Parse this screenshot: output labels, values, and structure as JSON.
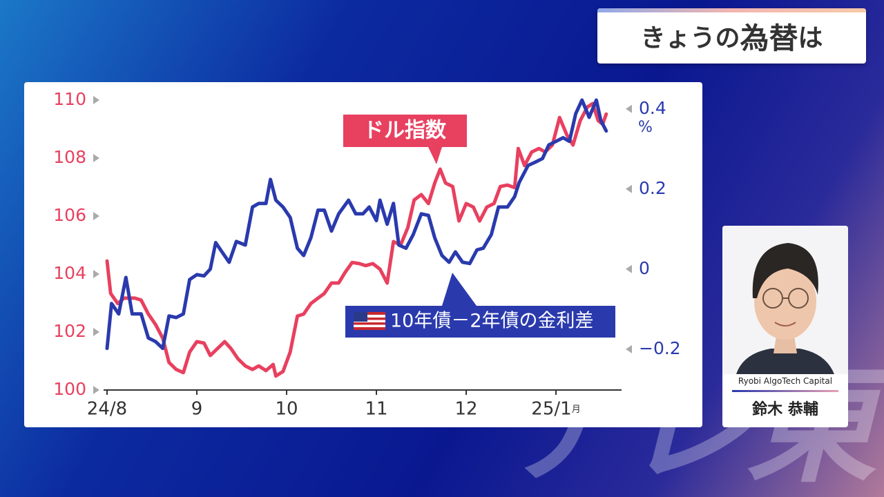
{
  "header": {
    "title_prefix": "きょうの",
    "title_emphasis": "為替",
    "title_suffix": "は"
  },
  "presenter": {
    "company": "Ryobi AlgoTech Capital",
    "name": "鈴木 恭輔"
  },
  "watermark": "テレ東",
  "chart_data": {
    "type": "line",
    "xlim": [
      0,
      5.6
    ],
    "xticks": [
      {
        "value": 0,
        "label": "24/8"
      },
      {
        "value": 1,
        "label": "9"
      },
      {
        "value": 2,
        "label": "10"
      },
      {
        "value": 3,
        "label": "11"
      },
      {
        "value": 4,
        "label": "12"
      },
      {
        "value": 5,
        "label": "25/1"
      }
    ],
    "x_unit": "月",
    "ylim": [
      100,
      110
    ],
    "yticks": [
      100,
      102,
      104,
      106,
      108,
      110
    ],
    "y2lim": [
      -0.302,
      0.422
    ],
    "y2ticks": [
      {
        "value": -0.2,
        "label": "−0.2"
      },
      0,
      0.2,
      0.4
    ],
    "y2label": "%",
    "series": [
      {
        "name": "ドル指数",
        "color": "#e8405f",
        "x": [
          0,
          0.04,
          0.12,
          0.19,
          0.31,
          0.38,
          0.46,
          0.54,
          0.62,
          0.69,
          0.77,
          0.85,
          0.92,
          1.0,
          1.08,
          1.15,
          1.23,
          1.31,
          1.38,
          1.46,
          1.54,
          1.62,
          1.69,
          1.77,
          1.85,
          1.88,
          1.96,
          2.04,
          2.12,
          2.19,
          2.27,
          2.35,
          2.42,
          2.5,
          2.58,
          2.65,
          2.73,
          2.81,
          2.88,
          2.96,
          3.04,
          3.12,
          3.19,
          3.27,
          3.35,
          3.42,
          3.5,
          3.58,
          3.65,
          3.71,
          3.77,
          3.85,
          3.92,
          4.0,
          4.08,
          4.15,
          4.23,
          4.31,
          4.38,
          4.46,
          4.54,
          4.58,
          4.65,
          4.73,
          4.81,
          4.88,
          4.96,
          5.04,
          5.12,
          5.19,
          5.27,
          5.35,
          5.41,
          5.47,
          5.52,
          5.56
        ],
        "values": [
          104.45,
          103.33,
          102.98,
          103.17,
          103.17,
          103.1,
          102.62,
          102.26,
          101.79,
          100.95,
          100.71,
          100.6,
          101.31,
          101.67,
          101.62,
          101.19,
          101.43,
          101.67,
          101.43,
          101.07,
          100.83,
          100.71,
          100.83,
          100.67,
          100.88,
          100.48,
          100.64,
          101.31,
          102.55,
          102.62,
          102.98,
          103.17,
          103.33,
          103.69,
          103.69,
          104.05,
          104.4,
          104.36,
          104.29,
          104.36,
          104.17,
          103.69,
          105.12,
          105.0,
          105.6,
          106.55,
          106.74,
          106.43,
          107.14,
          107.62,
          107.14,
          107.02,
          105.83,
          106.43,
          106.31,
          105.83,
          106.31,
          106.43,
          107.02,
          107.07,
          106.98,
          108.33,
          107.74,
          108.21,
          108.33,
          108.21,
          108.45,
          109.4,
          108.81,
          108.45,
          109.29,
          109.76,
          109.88,
          109.29,
          109.17,
          109.52
        ]
      },
      {
        "name": "10年債－2年債の金利差",
        "color": "#2a3aad",
        "axis": "y2",
        "x": [
          0,
          0.05,
          0.13,
          0.21,
          0.28,
          0.38,
          0.46,
          0.54,
          0.62,
          0.69,
          0.77,
          0.85,
          0.92,
          1.0,
          1.08,
          1.15,
          1.21,
          1.28,
          1.36,
          1.44,
          1.54,
          1.62,
          1.69,
          1.77,
          1.82,
          1.88,
          1.96,
          2.04,
          2.12,
          2.19,
          2.27,
          2.35,
          2.42,
          2.5,
          2.58,
          2.69,
          2.77,
          2.85,
          2.92,
          3.0,
          3.04,
          3.12,
          3.19,
          3.25,
          3.33,
          3.41,
          3.5,
          3.58,
          3.65,
          3.73,
          3.81,
          3.88,
          3.96,
          4.04,
          4.12,
          4.19,
          4.28,
          4.36,
          4.46,
          4.54,
          4.59,
          4.69,
          4.77,
          4.85,
          4.92,
          5.0,
          5.08,
          5.15,
          5.22,
          5.29,
          5.37,
          5.45,
          5.5,
          5.56
        ],
        "values": [
          -0.198,
          -0.086,
          -0.112,
          -0.021,
          -0.112,
          -0.112,
          -0.172,
          -0.181,
          -0.198,
          -0.117,
          -0.121,
          -0.112,
          -0.026,
          -0.014,
          -0.017,
          0,
          0.066,
          0.043,
          0.017,
          0.069,
          0.06,
          0.155,
          0.164,
          0.164,
          0.224,
          0.172,
          0.155,
          0.129,
          0.052,
          0.034,
          0.078,
          0.147,
          0.147,
          0.095,
          0.138,
          0.172,
          0.138,
          0.138,
          0.155,
          0.121,
          0.172,
          0.112,
          0.164,
          0.06,
          0.052,
          0.086,
          0.138,
          0.134,
          0.078,
          0.034,
          0.017,
          0.043,
          0.017,
          0.014,
          0.048,
          0.052,
          0.086,
          0.155,
          0.155,
          0.181,
          0.216,
          0.259,
          0.267,
          0.276,
          0.31,
          0.319,
          0.328,
          0.319,
          0.388,
          0.422,
          0.379,
          0.422,
          0.371,
          0.345
        ]
      }
    ]
  }
}
